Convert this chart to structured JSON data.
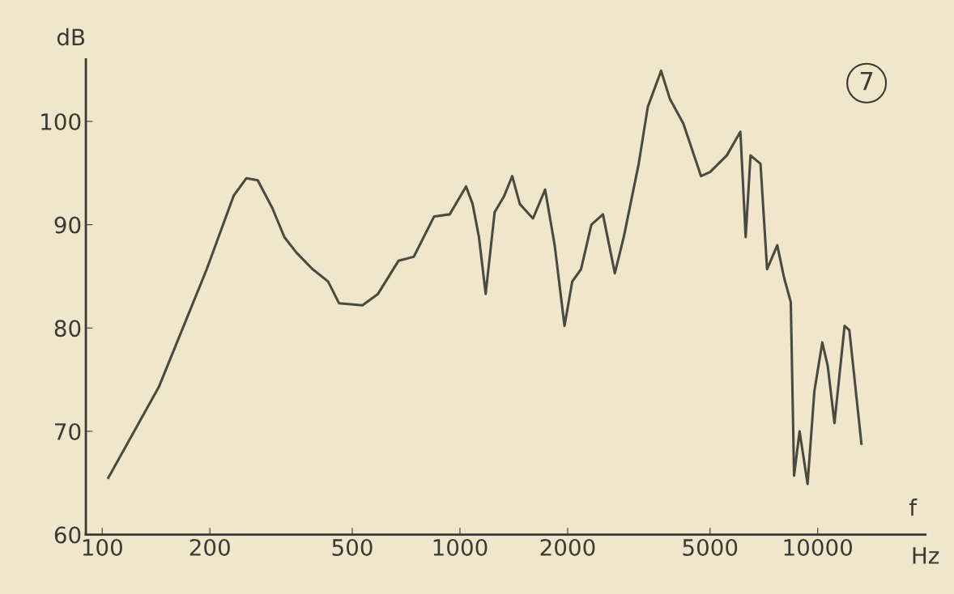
{
  "chart_data": {
    "type": "line",
    "xlabel": "f",
    "ylabel": "dB",
    "annotations": [
      "Hz",
      "7"
    ],
    "log": "x",
    "xlim": [
      90,
      20000
    ],
    "xticks": [
      100,
      200,
      500,
      1000,
      2000,
      5000,
      10000
    ],
    "ylim": [
      60,
      106
    ],
    "yticks": [
      60,
      70,
      80,
      90,
      100
    ],
    "grid": false,
    "legend": false,
    "marker": "none",
    "line_style": "solid",
    "series": [
      {
        "color": "#4a4a40",
        "x": [
          104,
          144,
          196,
          233,
          253,
          272,
          299,
          323,
          349,
          387,
          428,
          459,
          534,
          590,
          673,
          743,
          847,
          936,
          1040,
          1085,
          1130,
          1180,
          1250,
          1330,
          1400,
          1470,
          1600,
          1730,
          1840,
          1960,
          2060,
          2180,
          2330,
          2510,
          2710,
          2870,
          3160,
          3350,
          3650,
          3860,
          4210,
          4720,
          5000,
          5570,
          6080,
          6290,
          6490,
          6920,
          7220,
          7710,
          8050,
          8410,
          8590,
          8900,
          9370,
          9790,
          10300,
          10670,
          11140,
          11890,
          12260,
          13250
        ],
        "values": [
          65.5,
          74.3,
          85.7,
          92.8,
          94.5,
          94.3,
          91.6,
          88.8,
          87.3,
          85.7,
          84.5,
          82.4,
          82.2,
          83.3,
          86.5,
          86.9,
          90.8,
          91.0,
          93.7,
          92.0,
          88.8,
          83.3,
          91.2,
          92.8,
          94.7,
          92.0,
          90.6,
          93.4,
          88.0,
          80.2,
          84.5,
          85.7,
          90.0,
          91.0,
          85.3,
          88.8,
          95.9,
          101.4,
          104.9,
          102.2,
          99.8,
          94.7,
          95.1,
          96.7,
          99.0,
          88.8,
          96.7,
          95.9,
          85.7,
          88.0,
          84.9,
          82.5,
          65.7,
          70.0,
          64.9,
          73.9,
          78.6,
          76.3,
          70.8,
          80.2,
          79.8,
          68.8
        ]
      }
    ]
  }
}
